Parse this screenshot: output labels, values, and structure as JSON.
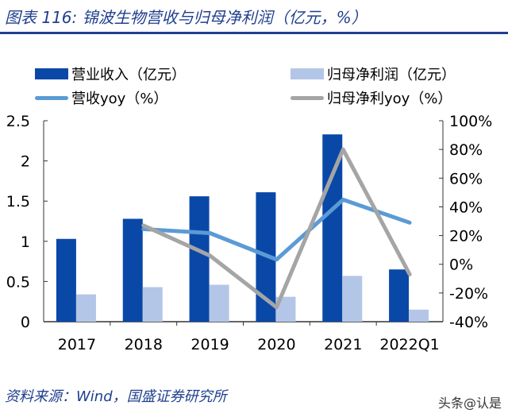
{
  "title": "图表 116:  锦波生物营收与归母净利润（亿元，%）",
  "source": "资料来源：Wind，国盛证券研究所",
  "watermark": "头条@认是",
  "colors": {
    "revenue": "#0a48a8",
    "net_profit": "#b4c6e7",
    "revenue_yoy": "#5b9bd5",
    "profit_yoy": "#a5a5a5",
    "title": "#1f3f8f"
  },
  "chart_data": {
    "type": "bar+line",
    "categories": [
      "2017",
      "2018",
      "2019",
      "2020",
      "2021",
      "2022Q1"
    ],
    "series": [
      {
        "name": "营业收入（亿元）",
        "type": "bar",
        "axis": "left",
        "values": [
          1.03,
          1.28,
          1.56,
          1.61,
          2.33,
          0.65
        ]
      },
      {
        "name": "归母净利润（亿元）",
        "type": "bar",
        "axis": "left",
        "values": [
          0.34,
          0.43,
          0.46,
          0.31,
          0.57,
          0.15
        ]
      },
      {
        "name": "营收yoy（%）",
        "type": "line",
        "axis": "right",
        "values": [
          null,
          24.5,
          21.7,
          3.3,
          45,
          29
        ]
      },
      {
        "name": "归母净利yoy（%）",
        "type": "line",
        "axis": "right",
        "values": [
          null,
          27,
          6,
          -30,
          80,
          -7
        ]
      }
    ],
    "left_axis": {
      "range": [
        0,
        2.5
      ],
      "ticks": [
        "0",
        "0.5",
        "1",
        "1.5",
        "2",
        "2.5"
      ]
    },
    "right_axis": {
      "range": [
        -40,
        100
      ],
      "ticks": [
        "-40%",
        "-20%",
        "0%",
        "20%",
        "40%",
        "60%",
        "80%",
        "100%"
      ]
    },
    "legend_placement": "top",
    "grid": false
  }
}
